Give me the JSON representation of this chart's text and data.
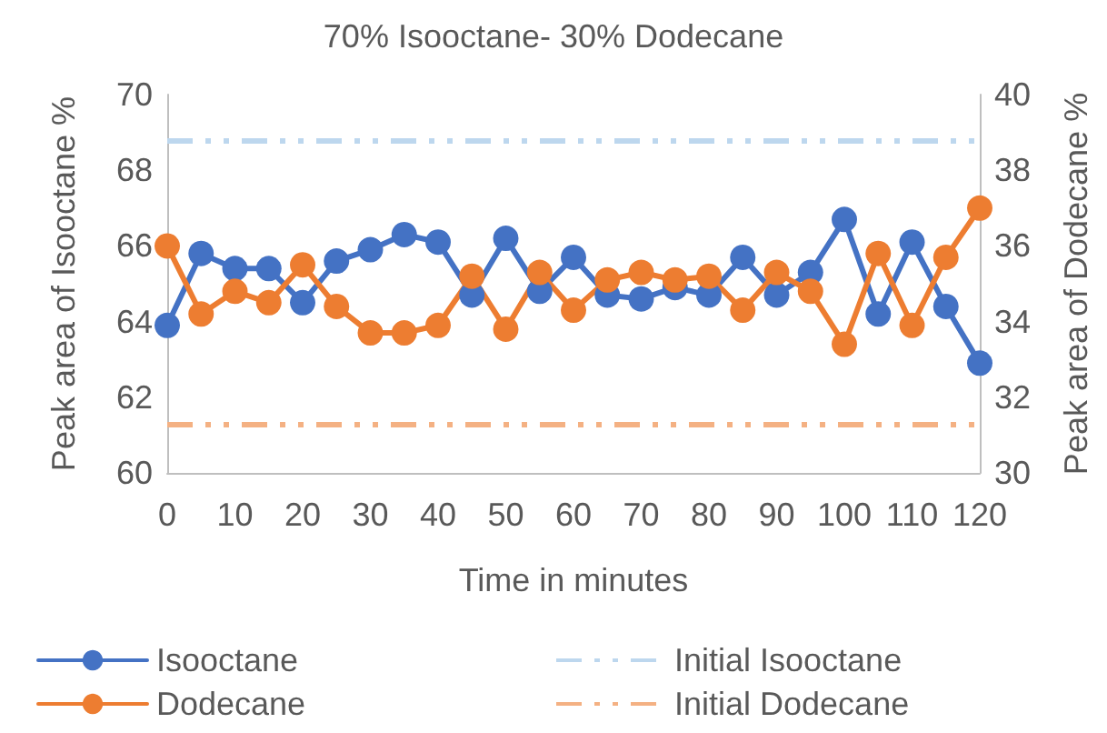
{
  "chart_data": {
    "type": "line",
    "title": "70% Isooctane- 30% Dodecane",
    "xlabel": "Time in minutes",
    "ylabel": "Peak area of Isooctane %",
    "y2label": "Peak area of Dodecane %",
    "categories": [
      "0",
      null,
      "10",
      null,
      "20",
      null,
      "30",
      null,
      "40",
      null,
      "50",
      null,
      "60",
      null,
      "70",
      null,
      "80",
      null,
      "90",
      null,
      "100",
      null,
      "110",
      null,
      "120"
    ],
    "series": [
      {
        "name": "Isooctane",
        "color": "#4472c4",
        "values": [
          63.9,
          65.8,
          65.4,
          65.4,
          64.5,
          65.6,
          65.9,
          66.3,
          66.1,
          64.7,
          66.2,
          64.8,
          65.7,
          64.7,
          64.6,
          64.9,
          64.7,
          65.7,
          64.7,
          65.3,
          66.7,
          64.2,
          66.1,
          64.4,
          62.9
        ]
      },
      {
        "name": "Dodecane",
        "color": "#ed7d31",
        "axis": "y2",
        "values": [
          36.0,
          34.2,
          34.8,
          34.5,
          35.5,
          34.4,
          33.7,
          33.7,
          33.9,
          35.2,
          33.8,
          35.3,
          34.3,
          35.1,
          35.3,
          35.1,
          35.2,
          34.3,
          35.3,
          34.8,
          33.4,
          35.8,
          33.9,
          35.7,
          37.0
        ]
      }
    ],
    "ref_lines": [
      {
        "axis": "y",
        "value": 68.8,
        "label": "Initial Isooctane",
        "color": "#bdd7ee",
        "line_style": "dashed"
      },
      {
        "axis": "y2",
        "value": 31.3,
        "label": "Initial Dodecane",
        "color": "#f4b183",
        "line_style": "dashed"
      }
    ],
    "ylim": [
      60,
      70
    ],
    "yticks": [
      60,
      62,
      64,
      66,
      68,
      70
    ],
    "y2lim": [
      30,
      40
    ],
    "y2ticks": [
      30,
      32,
      34,
      36,
      38,
      40
    ],
    "legend": "bottom",
    "grid": false,
    "marker": "circle",
    "line_style": "solid"
  }
}
